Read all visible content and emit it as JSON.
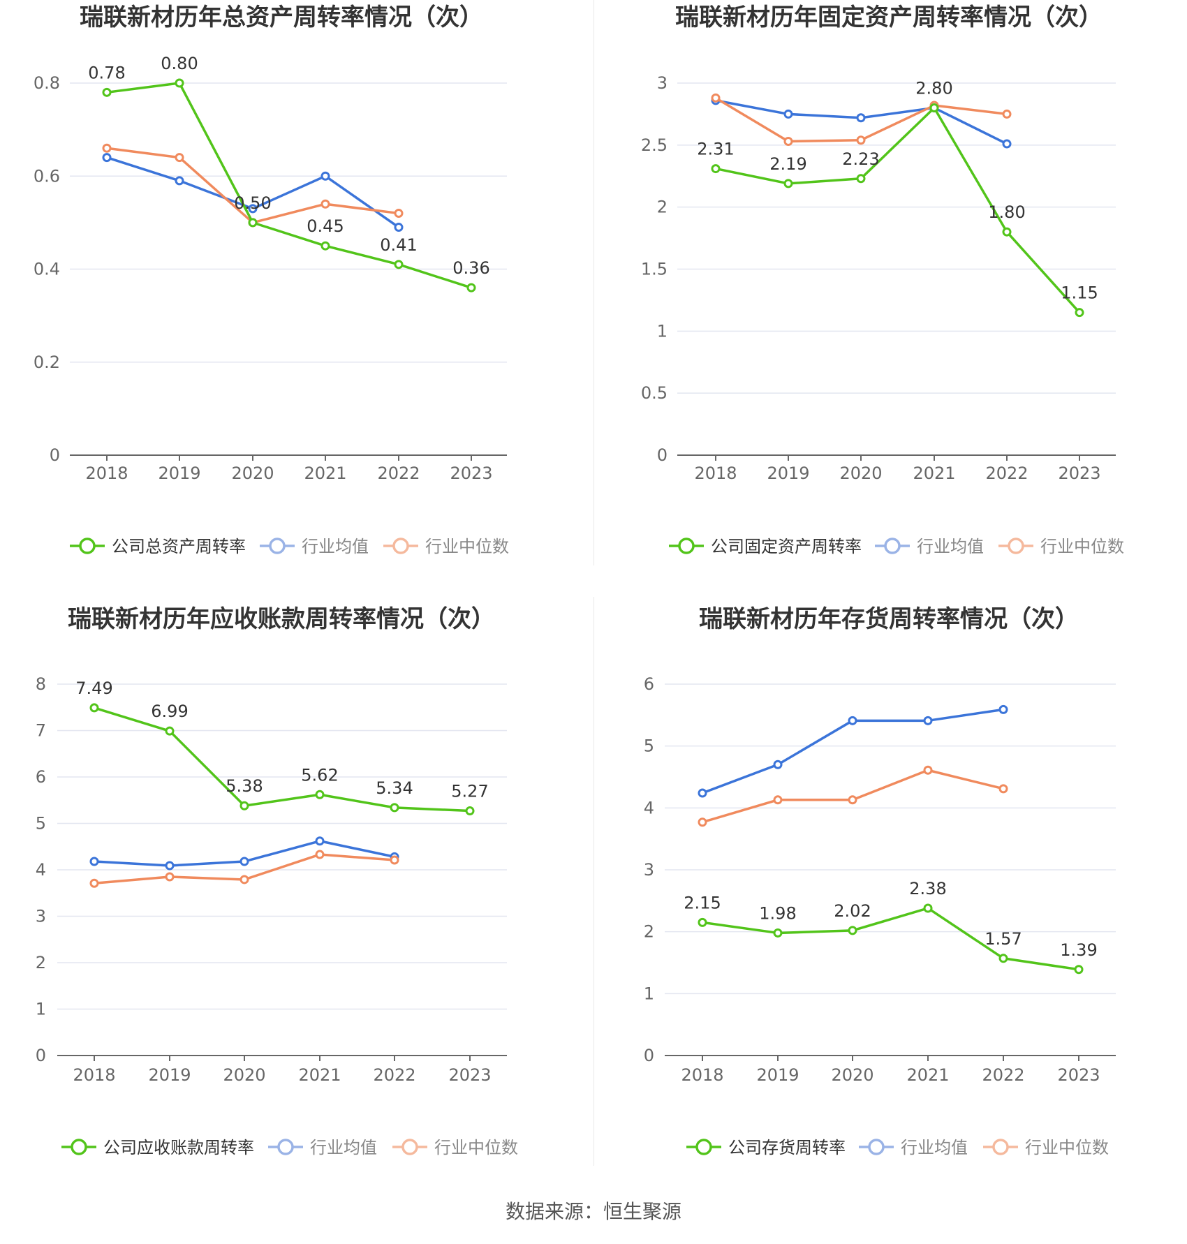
{
  "chart_data": [
    {
      "type": "line",
      "title": "瑞联新材历年总资产周转率情况（次）",
      "categories": [
        "2018",
        "2019",
        "2020",
        "2021",
        "2022",
        "2023"
      ],
      "yticks": [
        "0",
        "0.2",
        "0.4",
        "0.6",
        "0.8"
      ],
      "ylim": [
        0,
        0.8
      ],
      "grid": true,
      "legend_position": "bottom",
      "series": [
        {
          "name": "公司总资产周转率",
          "color": "#52c41a",
          "values": [
            0.78,
            0.8,
            0.5,
            0.45,
            0.41,
            0.36
          ],
          "labels": [
            "0.78",
            "0.80",
            "0.50",
            "0.45",
            "0.41",
            "0.36"
          ]
        },
        {
          "name": "行业均值",
          "color": "#3b74d9",
          "values": [
            0.64,
            0.59,
            0.53,
            0.6,
            0.49,
            null
          ]
        },
        {
          "name": "行业中位数",
          "color": "#f08a5d",
          "values": [
            0.66,
            0.64,
            0.5,
            0.54,
            0.52,
            null
          ]
        }
      ]
    },
    {
      "type": "line",
      "title": "瑞联新材历年固定资产周转率情况（次）",
      "categories": [
        "2018",
        "2019",
        "2020",
        "2021",
        "2022",
        "2023"
      ],
      "yticks": [
        "0",
        "0.5",
        "1",
        "1.5",
        "2",
        "2.5",
        "3"
      ],
      "ylim": [
        0,
        3
      ],
      "grid": true,
      "legend_position": "bottom",
      "series": [
        {
          "name": "公司固定资产周转率",
          "color": "#52c41a",
          "values": [
            2.31,
            2.19,
            2.23,
            2.8,
            1.8,
            1.15
          ],
          "labels": [
            "2.31",
            "2.19",
            "2.23",
            "2.80",
            "1.80",
            "1.15"
          ]
        },
        {
          "name": "行业均值",
          "color": "#3b74d9",
          "values": [
            2.86,
            2.75,
            2.72,
            2.8,
            2.51,
            null
          ]
        },
        {
          "name": "行业中位数",
          "color": "#f08a5d",
          "values": [
            2.88,
            2.53,
            2.54,
            2.82,
            2.75,
            null
          ]
        }
      ]
    },
    {
      "type": "line",
      "title": "瑞联新材历年应收账款周转率情况（次）",
      "categories": [
        "2018",
        "2019",
        "2020",
        "2021",
        "2022",
        "2023"
      ],
      "yticks": [
        "0",
        "1",
        "2",
        "3",
        "4",
        "5",
        "6",
        "7",
        "8"
      ],
      "ylim": [
        0,
        8
      ],
      "grid": true,
      "legend_position": "bottom",
      "series": [
        {
          "name": "公司应收账款周转率",
          "color": "#52c41a",
          "values": [
            7.49,
            6.99,
            5.38,
            5.62,
            5.34,
            5.27
          ],
          "labels": [
            "7.49",
            "6.99",
            "5.38",
            "5.62",
            "5.34",
            "5.27"
          ]
        },
        {
          "name": "行业均值",
          "color": "#3b74d9",
          "values": [
            4.18,
            4.09,
            4.18,
            4.62,
            4.28,
            null
          ]
        },
        {
          "name": "行业中位数",
          "color": "#f08a5d",
          "values": [
            3.71,
            3.85,
            3.79,
            4.33,
            4.21,
            null
          ]
        }
      ]
    },
    {
      "type": "line",
      "title": "瑞联新材历年存货周转率情况（次）",
      "categories": [
        "2018",
        "2019",
        "2020",
        "2021",
        "2022",
        "2023"
      ],
      "yticks": [
        "0",
        "1",
        "2",
        "3",
        "4",
        "5",
        "6"
      ],
      "ylim": [
        0,
        6
      ],
      "grid": true,
      "legend_position": "bottom",
      "series": [
        {
          "name": "公司存货周转率",
          "color": "#52c41a",
          "values": [
            2.15,
            1.98,
            2.02,
            2.38,
            1.57,
            1.39
          ],
          "labels": [
            "2.15",
            "1.98",
            "2.02",
            "2.38",
            "1.57",
            "1.39"
          ]
        },
        {
          "name": "行业均值",
          "color": "#3b74d9",
          "values": [
            4.24,
            4.7,
            5.41,
            5.41,
            5.59,
            null
          ]
        },
        {
          "name": "行业中位数",
          "color": "#f08a5d",
          "values": [
            3.77,
            4.13,
            4.13,
            4.61,
            4.31,
            null
          ]
        }
      ]
    }
  ],
  "source": "数据来源：恒生聚源"
}
